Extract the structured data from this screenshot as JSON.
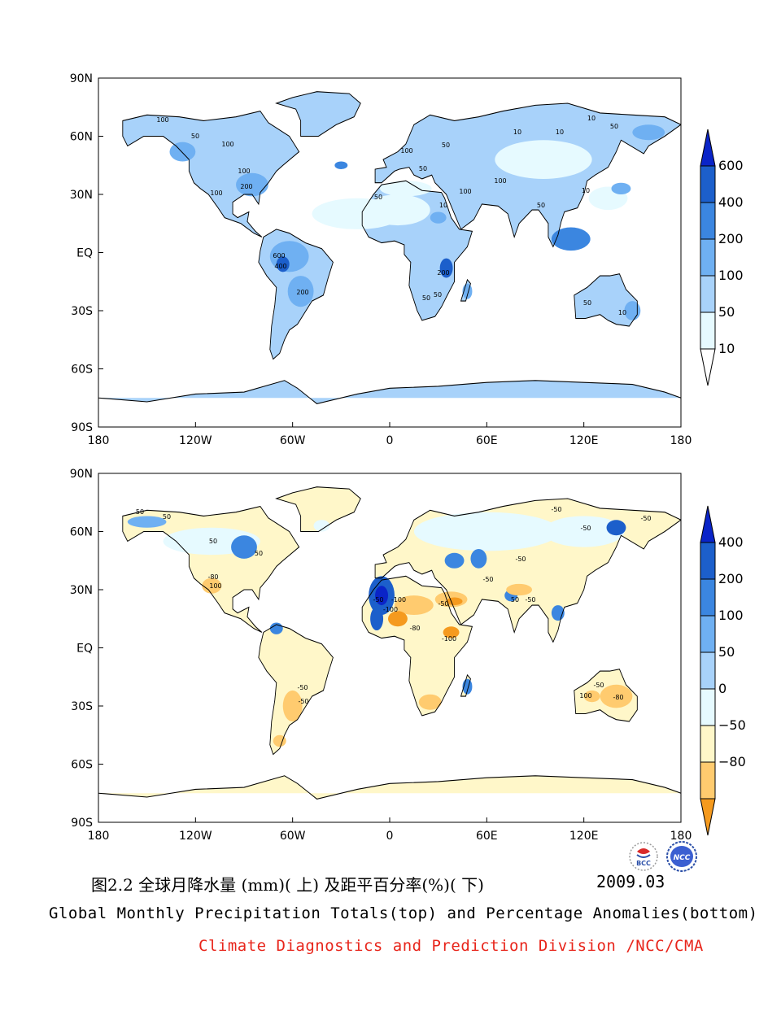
{
  "colors": {
    "neg_dark": "#F59A1E",
    "neg_light": "#FFCB6F",
    "neg_pale": "#FFF7C9",
    "pos0": "#E6FAFF",
    "pos1": "#A8D2FA",
    "pos2": "#6FB0F2",
    "pos3": "#3B86E0",
    "pos4": "#1C5FCB",
    "pos5": "#0A24C8",
    "land": "#ffffff",
    "caption_red": "#E8251B"
  },
  "chart_data": [
    {
      "type": "heatmap",
      "title": "Global Monthly Precipitation Totals",
      "units": "mm",
      "xlim": [
        -180,
        180
      ],
      "ylim": [
        -90,
        90
      ],
      "x_ticks": [
        -180,
        -120,
        -60,
        0,
        60,
        120,
        180
      ],
      "x_tick_labels": [
        "180",
        "120W",
        "60W",
        "0",
        "60E",
        "120E",
        "180"
      ],
      "y_ticks": [
        90,
        60,
        30,
        0,
        -30,
        -60,
        -90
      ],
      "y_tick_labels": [
        "90N",
        "60N",
        "30N",
        "EQ",
        "30S",
        "60S",
        "90S"
      ],
      "colorbar_levels": [
        "600",
        "400",
        "200",
        "100",
        "50",
        "10"
      ],
      "contour_labels": [
        "10",
        "50",
        "100",
        "200",
        "400",
        "600"
      ]
    },
    {
      "type": "heatmap",
      "title": "Percentage Anomalies",
      "units": "%",
      "xlim": [
        -180,
        180
      ],
      "ylim": [
        -90,
        90
      ],
      "x_ticks": [
        -180,
        -120,
        -60,
        0,
        60,
        120,
        180
      ],
      "x_tick_labels": [
        "180",
        "120W",
        "60W",
        "0",
        "60E",
        "120E",
        "180"
      ],
      "y_ticks": [
        90,
        60,
        30,
        0,
        -30,
        -60,
        -90
      ],
      "y_tick_labels": [
        "90N",
        "60N",
        "30N",
        "EQ",
        "30S",
        "60S",
        "90S"
      ],
      "colorbar_levels": [
        "400",
        "200",
        "100",
        "50",
        "0",
        "−50",
        "−80"
      ],
      "contour_labels": [
        "-80",
        "-50",
        "50",
        "100",
        "-100"
      ]
    }
  ],
  "caption": {
    "figure_cn": "图2.2  全球月降水量 (mm)( 上) 及距平百分率(%)( 下)",
    "date": "2009.03",
    "english": "Global Monthly Precipitation Totals(top) and Percentage Anomalies(bottom)",
    "division": "Climate Diagnostics and Prediction Division /NCC/CMA"
  },
  "logos": {
    "left": "BCC",
    "right": "NCC"
  }
}
